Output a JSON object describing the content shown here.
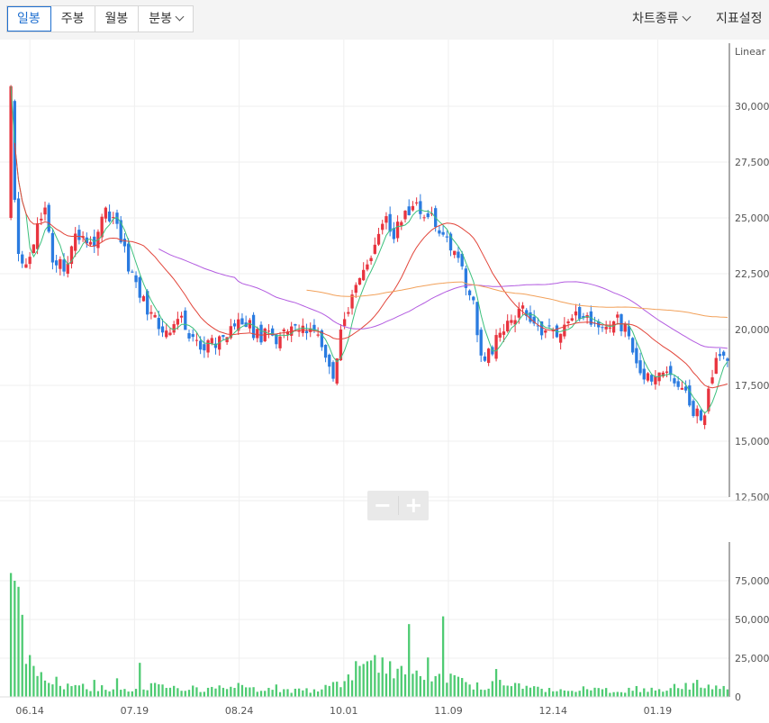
{
  "toolbar": {
    "tabs": [
      {
        "label": "일봉",
        "active": true
      },
      {
        "label": "주봉",
        "active": false
      },
      {
        "label": "월봉",
        "active": false
      },
      {
        "label": "분봉",
        "active": false,
        "dropdown": true
      }
    ],
    "chart_type_label": "차트종류",
    "indicator_settings_label": "지표설정"
  },
  "zoom": {
    "minus": "−",
    "plus": "+"
  },
  "colors": {
    "up": "#e8343f",
    "down": "#2a7be0",
    "volume": "#4fcb73",
    "ma5": "#3cc07d",
    "ma20": "#e2453a",
    "ma60": "#b35ce0",
    "ma120": "#f2a15a",
    "grid": "#efefef",
    "axis": "#555555"
  },
  "chart_data": {
    "type": "candlestick",
    "price_scale_label": "Linear",
    "price_axis": {
      "ylim": [
        12500,
        32500
      ],
      "ticks": [
        "12,500",
        "15,000",
        "17,500",
        "20,000",
        "22,500",
        "25,000",
        "27,500",
        "30,000"
      ]
    },
    "volume_axis": {
      "ylim": [
        0,
        100000000
      ],
      "ticks": [
        "0",
        "25,000,0",
        "50,000,0",
        "75,000,0"
      ]
    },
    "x_labels": [
      "06.14",
      "07.19",
      "08.24",
      "10.01",
      "11.09",
      "12.14",
      "01.19"
    ],
    "close_anchors": [
      [
        0,
        30000
      ],
      [
        1,
        26000
      ],
      [
        2,
        23500
      ],
      [
        4,
        22700
      ],
      [
        7,
        24500
      ],
      [
        9,
        25600
      ],
      [
        11,
        23200
      ],
      [
        14,
        22900
      ],
      [
        18,
        24300
      ],
      [
        22,
        24000
      ],
      [
        25,
        25300
      ],
      [
        28,
        24800
      ],
      [
        31,
        22800
      ],
      [
        35,
        21200
      ],
      [
        40,
        20000
      ],
      [
        45,
        20400
      ],
      [
        50,
        19200
      ],
      [
        55,
        19600
      ],
      [
        60,
        20600
      ],
      [
        65,
        19800
      ],
      [
        70,
        19600
      ],
      [
        75,
        20000
      ],
      [
        80,
        19800
      ],
      [
        85,
        18000
      ],
      [
        88,
        20500
      ],
      [
        92,
        22500
      ],
      [
        95,
        23200
      ],
      [
        98,
        25000
      ],
      [
        101,
        24300
      ],
      [
        104,
        25200
      ],
      [
        107,
        25500
      ],
      [
        110,
        25000
      ],
      [
        113,
        24600
      ],
      [
        116,
        23600
      ],
      [
        119,
        22700
      ],
      [
        122,
        21000
      ],
      [
        124,
        18600
      ],
      [
        126,
        18900
      ],
      [
        130,
        20200
      ],
      [
        135,
        21000
      ],
      [
        140,
        20000
      ],
      [
        145,
        19700
      ],
      [
        150,
        20700
      ],
      [
        155,
        20100
      ],
      [
        160,
        20400
      ],
      [
        163,
        19900
      ],
      [
        166,
        18100
      ],
      [
        169,
        17600
      ],
      [
        174,
        18000
      ],
      [
        177,
        17400
      ],
      [
        180,
        16400
      ],
      [
        183,
        16200
      ],
      [
        186,
        18700
      ],
      [
        189,
        18600
      ]
    ],
    "volume_anchors": [
      [
        0,
        80000000
      ],
      [
        2,
        70000000
      ],
      [
        4,
        25000000
      ],
      [
        6,
        11000000
      ],
      [
        10,
        9000000
      ],
      [
        20,
        6000000
      ],
      [
        30,
        5000000
      ],
      [
        40,
        7000000
      ],
      [
        50,
        5000000
      ],
      [
        60,
        6000000
      ],
      [
        70,
        4000000
      ],
      [
        80,
        4000000
      ],
      [
        88,
        10000000
      ],
      [
        92,
        25000000
      ],
      [
        98,
        20000000
      ],
      [
        103,
        15000000
      ],
      [
        107,
        18000000
      ],
      [
        110,
        20000000
      ],
      [
        115,
        12000000
      ],
      [
        120,
        8000000
      ],
      [
        126,
        7000000
      ],
      [
        130,
        9000000
      ],
      [
        140,
        5000000
      ],
      [
        150,
        5000000
      ],
      [
        160,
        4000000
      ],
      [
        170,
        5000000
      ],
      [
        180,
        7000000
      ],
      [
        189,
        5000000
      ]
    ],
    "volume_spikes": [
      [
        0,
        80000000
      ],
      [
        1,
        75000000
      ],
      [
        3,
        53000000
      ],
      [
        5,
        27000000
      ],
      [
        6,
        20000000
      ],
      [
        8,
        16000000
      ],
      [
        12,
        13000000
      ],
      [
        22,
        11000000
      ],
      [
        28,
        12000000
      ],
      [
        34,
        22000000
      ],
      [
        40,
        8000000
      ],
      [
        60,
        9000000
      ],
      [
        70,
        8000000
      ],
      [
        92,
        20000000
      ],
      [
        94,
        23000000
      ],
      [
        96,
        27000000
      ],
      [
        99,
        15000000
      ],
      [
        101,
        12000000
      ],
      [
        103,
        20000000
      ],
      [
        105,
        47000000
      ],
      [
        107,
        17000000
      ],
      [
        109,
        11000000
      ],
      [
        111,
        10000000
      ],
      [
        114,
        52000000
      ],
      [
        116,
        15000000
      ],
      [
        118,
        13000000
      ],
      [
        128,
        18000000
      ],
      [
        129,
        11000000
      ],
      [
        133,
        9000000
      ],
      [
        165,
        7000000
      ],
      [
        178,
        9000000
      ],
      [
        181,
        11000000
      ]
    ],
    "num_days": 190,
    "seed": 11,
    "moving_averages": [
      {
        "period": 5,
        "color_key": "ma5"
      },
      {
        "period": 20,
        "color_key": "ma20"
      },
      {
        "period": 60,
        "color_key": "ma60"
      },
      {
        "period": 120,
        "color_key": "ma120"
      }
    ]
  }
}
